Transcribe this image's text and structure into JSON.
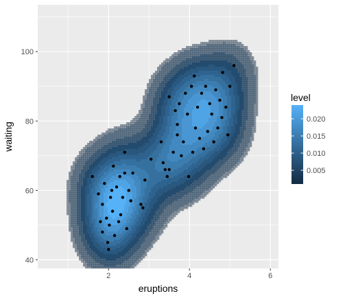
{
  "chart_data": {
    "type": "density2d",
    "xlabel": "eruptions",
    "ylabel": "waiting",
    "xlim": [
      0.25,
      6.2
    ],
    "ylim": [
      37.5,
      113.5
    ],
    "x_ticks": [
      2,
      4,
      6
    ],
    "y_ticks": [
      40,
      60,
      80,
      100
    ],
    "grid": true,
    "panel_background": "#ebebeb",
    "legend": {
      "title": "level",
      "position": "right",
      "breaks": [
        0.005,
        0.01,
        0.015,
        0.02
      ],
      "break_labels": [
        "0.005",
        "0.010",
        "0.015",
        "0.020"
      ],
      "range": [
        0.001,
        0.024
      ],
      "low_color": "#132b43",
      "high_color": "#56b1f7"
    },
    "peaks": [
      {
        "x": 4.4,
        "y": 80,
        "level": 0.024
      },
      {
        "x": 2.0,
        "y": 53.5,
        "level": 0.021
      }
    ],
    "points": [
      [
        1.6,
        64
      ],
      [
        1.75,
        59
      ],
      [
        1.8,
        51
      ],
      [
        1.85,
        48
      ],
      [
        1.85,
        56
      ],
      [
        1.9,
        62
      ],
      [
        1.95,
        52
      ],
      [
        1.98,
        45
      ],
      [
        2.0,
        43
      ],
      [
        2.02,
        50
      ],
      [
        2.05,
        58
      ],
      [
        2.08,
        60
      ],
      [
        2.1,
        54
      ],
      [
        2.12,
        67
      ],
      [
        2.15,
        47
      ],
      [
        2.2,
        61
      ],
      [
        2.25,
        51
      ],
      [
        2.28,
        64
      ],
      [
        2.3,
        53
      ],
      [
        2.35,
        58
      ],
      [
        2.4,
        65
      ],
      [
        2.4,
        71
      ],
      [
        2.45,
        49
      ],
      [
        2.5,
        60
      ],
      [
        2.55,
        57
      ],
      [
        2.6,
        65
      ],
      [
        2.8,
        56
      ],
      [
        2.85,
        55
      ],
      [
        2.9,
        63
      ],
      [
        3.05,
        69
      ],
      [
        3.3,
        74
      ],
      [
        3.35,
        68
      ],
      [
        3.4,
        66
      ],
      [
        3.45,
        64
      ],
      [
        3.5,
        66
      ],
      [
        3.5,
        87
      ],
      [
        3.6,
        71
      ],
      [
        3.65,
        83
      ],
      [
        3.7,
        76
      ],
      [
        3.7,
        79
      ],
      [
        3.75,
        85
      ],
      [
        3.8,
        70
      ],
      [
        3.85,
        74
      ],
      [
        3.9,
        88
      ],
      [
        3.95,
        82
      ],
      [
        3.98,
        64
      ],
      [
        4.05,
        90
      ],
      [
        4.08,
        71
      ],
      [
        4.12,
        93
      ],
      [
        4.15,
        78
      ],
      [
        4.2,
        84
      ],
      [
        4.25,
        75
      ],
      [
        4.3,
        88
      ],
      [
        4.35,
        72
      ],
      [
        4.4,
        90
      ],
      [
        4.45,
        77
      ],
      [
        4.5,
        85
      ],
      [
        4.55,
        82
      ],
      [
        4.6,
        74
      ],
      [
        4.65,
        89
      ],
      [
        4.7,
        78
      ],
      [
        4.75,
        86
      ],
      [
        4.8,
        81
      ],
      [
        4.82,
        94
      ],
      [
        4.9,
        84
      ],
      [
        4.95,
        76
      ],
      [
        5.0,
        90
      ],
      [
        5.1,
        96
      ]
    ]
  }
}
